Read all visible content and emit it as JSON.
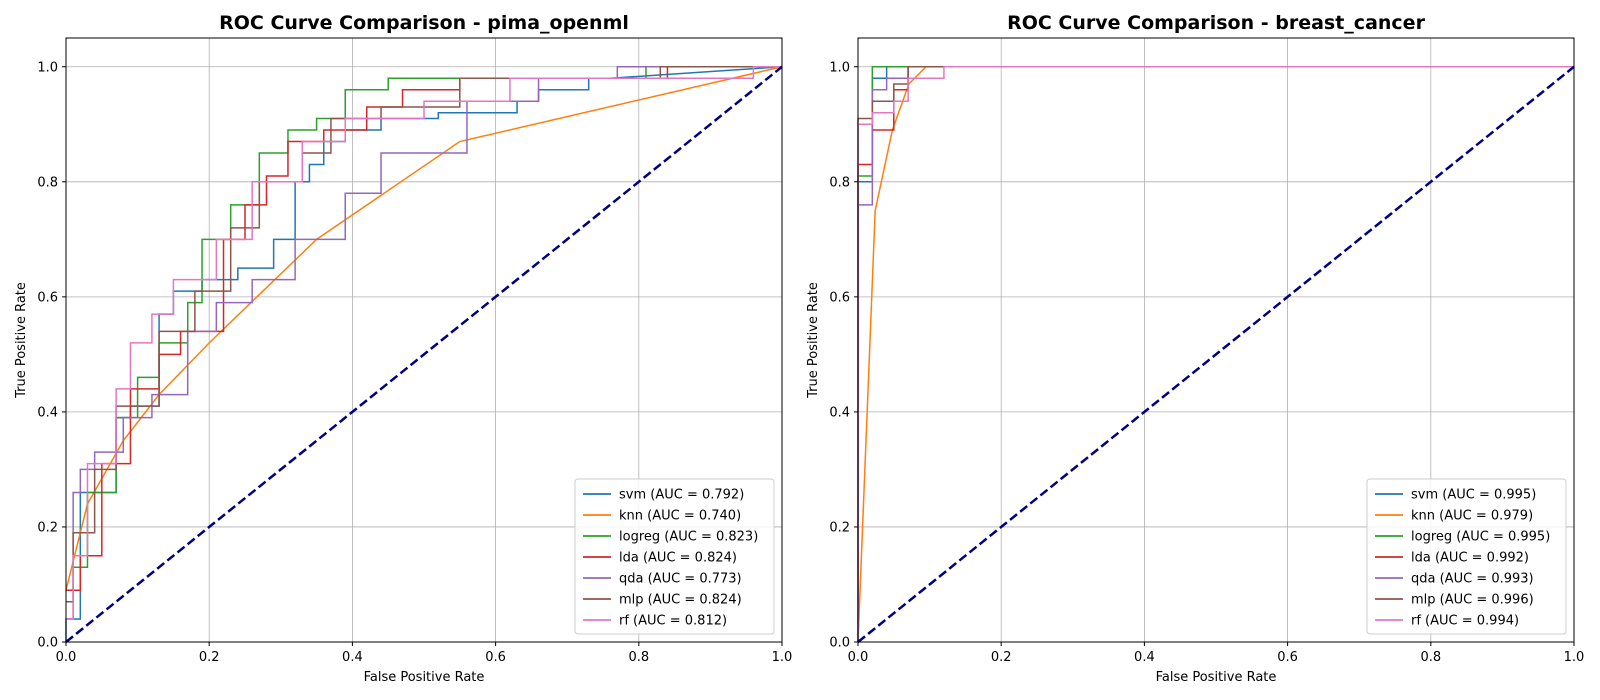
{
  "chart_data": [
    {
      "type": "line",
      "title": "ROC Curve Comparison - pima_openml",
      "xlabel": "False Positive Rate",
      "ylabel": "True Positive Rate",
      "xlim": [
        0,
        1
      ],
      "ylim": [
        0,
        1.05
      ],
      "xticks": [
        "0.0",
        "0.2",
        "0.4",
        "0.6",
        "0.8",
        "1.0"
      ],
      "yticks": [
        "0.0",
        "0.2",
        "0.4",
        "0.6",
        "0.8",
        "1.0"
      ],
      "grid": true,
      "legend_position": "lower-right",
      "reference_line": {
        "x": [
          0,
          1
        ],
        "y": [
          0,
          1
        ],
        "color": "#000080",
        "style": "dashed"
      },
      "series": [
        {
          "name": "svm (AUC = 0.792)",
          "color": "#1f77b4",
          "x": [
            0,
            0,
            0.02,
            0.02,
            0.07,
            0.07,
            0.09,
            0.09,
            0.13,
            0.13,
            0.15,
            0.15,
            0.19,
            0.19,
            0.24,
            0.24,
            0.29,
            0.29,
            0.32,
            0.32,
            0.34,
            0.34,
            0.36,
            0.36,
            0.39,
            0.39,
            0.44,
            0.44,
            0.52,
            0.52,
            0.63,
            0.63,
            0.66,
            0.66,
            0.73,
            0.73,
            0.76,
            0.76,
            1.0
          ],
          "y": [
            0,
            0.04,
            0.04,
            0.26,
            0.26,
            0.39,
            0.39,
            0.41,
            0.41,
            0.57,
            0.57,
            0.61,
            0.61,
            0.63,
            0.63,
            0.65,
            0.65,
            0.7,
            0.7,
            0.8,
            0.8,
            0.83,
            0.83,
            0.87,
            0.87,
            0.89,
            0.89,
            0.91,
            0.91,
            0.92,
            0.92,
            0.94,
            0.94,
            0.96,
            0.96,
            0.98,
            0.98,
            0.98,
            1.0
          ]
        },
        {
          "name": "knn (AUC = 0.740)",
          "color": "#ff7f0e",
          "x": [
            0,
            0.03,
            0.08,
            0.13,
            0.2,
            0.35,
            0.55,
            1.0
          ],
          "y": [
            0.09,
            0.24,
            0.35,
            0.43,
            0.52,
            0.7,
            0.87,
            1.0
          ]
        },
        {
          "name": "logreg (AUC = 0.823)",
          "color": "#2ca02c",
          "x": [
            0,
            0.01,
            0.01,
            0.03,
            0.03,
            0.07,
            0.07,
            0.1,
            0.1,
            0.13,
            0.13,
            0.17,
            0.17,
            0.19,
            0.19,
            0.23,
            0.23,
            0.27,
            0.27,
            0.31,
            0.31,
            0.35,
            0.35,
            0.39,
            0.39,
            0.45,
            0.45,
            0.51,
            0.51,
            0.81,
            0.81,
            1.0
          ],
          "y": [
            0.09,
            0.09,
            0.13,
            0.13,
            0.26,
            0.26,
            0.39,
            0.39,
            0.46,
            0.46,
            0.52,
            0.52,
            0.59,
            0.59,
            0.7,
            0.7,
            0.76,
            0.76,
            0.85,
            0.85,
            0.89,
            0.89,
            0.91,
            0.91,
            0.96,
            0.96,
            0.98,
            0.98,
            0.98,
            0.98,
            1.0,
            1.0
          ]
        },
        {
          "name": "lda (AUC = 0.824)",
          "color": "#d62728",
          "x": [
            0,
            0.02,
            0.02,
            0.05,
            0.05,
            0.09,
            0.09,
            0.13,
            0.13,
            0.16,
            0.16,
            0.22,
            0.22,
            0.25,
            0.25,
            0.28,
            0.28,
            0.31,
            0.31,
            0.36,
            0.36,
            0.42,
            0.42,
            0.47,
            0.47,
            0.55,
            0.55,
            0.84,
            0.84,
            1.0
          ],
          "y": [
            0.09,
            0.09,
            0.15,
            0.15,
            0.31,
            0.31,
            0.44,
            0.44,
            0.5,
            0.5,
            0.54,
            0.54,
            0.7,
            0.7,
            0.76,
            0.76,
            0.81,
            0.81,
            0.87,
            0.87,
            0.89,
            0.89,
            0.93,
            0.93,
            0.96,
            0.96,
            0.98,
            0.98,
            1.0,
            1.0
          ]
        },
        {
          "name": "qda (AUC = 0.773)",
          "color": "#9467bd",
          "x": [
            0,
            0.01,
            0.01,
            0.02,
            0.02,
            0.04,
            0.04,
            0.08,
            0.08,
            0.12,
            0.12,
            0.17,
            0.17,
            0.21,
            0.21,
            0.26,
            0.26,
            0.32,
            0.32,
            0.39,
            0.39,
            0.44,
            0.44,
            0.56,
            0.56,
            0.66,
            0.66,
            0.77,
            0.77,
            1.0
          ],
          "y": [
            0.04,
            0.04,
            0.26,
            0.26,
            0.3,
            0.3,
            0.33,
            0.33,
            0.39,
            0.39,
            0.43,
            0.43,
            0.54,
            0.54,
            0.59,
            0.59,
            0.63,
            0.63,
            0.7,
            0.7,
            0.78,
            0.78,
            0.85,
            0.85,
            0.94,
            0.94,
            0.98,
            0.98,
            1.0,
            1.0
          ]
        },
        {
          "name": "mlp (AUC = 0.824)",
          "color": "#8c564b",
          "x": [
            0,
            0.01,
            0.01,
            0.04,
            0.04,
            0.07,
            0.07,
            0.13,
            0.13,
            0.18,
            0.18,
            0.23,
            0.23,
            0.27,
            0.27,
            0.33,
            0.33,
            0.37,
            0.37,
            0.44,
            0.44,
            0.55,
            0.55,
            0.83,
            0.83,
            1.0
          ],
          "y": [
            0.07,
            0.07,
            0.19,
            0.19,
            0.3,
            0.3,
            0.41,
            0.41,
            0.54,
            0.54,
            0.61,
            0.61,
            0.72,
            0.72,
            0.8,
            0.8,
            0.85,
            0.85,
            0.91,
            0.91,
            0.93,
            0.93,
            0.98,
            0.98,
            1.0,
            1.0
          ]
        },
        {
          "name": "rf (AUC = 0.812)",
          "color": "#e377c2",
          "x": [
            0,
            0.01,
            0.01,
            0.03,
            0.03,
            0.07,
            0.07,
            0.09,
            0.09,
            0.12,
            0.12,
            0.15,
            0.15,
            0.21,
            0.21,
            0.26,
            0.26,
            0.33,
            0.33,
            0.39,
            0.39,
            0.5,
            0.5,
            0.62,
            0.62,
            0.96,
            0.96,
            1.0
          ],
          "y": [
            0.04,
            0.04,
            0.15,
            0.15,
            0.31,
            0.31,
            0.44,
            0.44,
            0.52,
            0.52,
            0.57,
            0.57,
            0.63,
            0.63,
            0.7,
            0.7,
            0.8,
            0.8,
            0.87,
            0.87,
            0.91,
            0.91,
            0.94,
            0.94,
            0.98,
            0.98,
            1.0,
            1.0
          ]
        }
      ]
    },
    {
      "type": "line",
      "title": "ROC Curve Comparison - breast_cancer",
      "xlabel": "False Positive Rate",
      "ylabel": "True Positive Rate",
      "xlim": [
        0,
        1
      ],
      "ylim": [
        0,
        1.05
      ],
      "xticks": [
        "0.0",
        "0.2",
        "0.4",
        "0.6",
        "0.8",
        "1.0"
      ],
      "yticks": [
        "0.0",
        "0.2",
        "0.4",
        "0.6",
        "0.8",
        "1.0"
      ],
      "grid": true,
      "legend_position": "lower-right",
      "reference_line": {
        "x": [
          0,
          1
        ],
        "y": [
          0,
          1
        ],
        "color": "#000080",
        "style": "dashed"
      },
      "series": [
        {
          "name": "svm (AUC = 0.995)",
          "color": "#1f77b4",
          "x": [
            0,
            0,
            0.02,
            0.02,
            0.04,
            0.04,
            1.0
          ],
          "y": [
            0,
            0.8,
            0.8,
            0.98,
            0.98,
            1.0,
            1.0
          ]
        },
        {
          "name": "knn (AUC = 0.979)",
          "color": "#ff7f0e",
          "x": [
            0,
            0.024,
            0.048,
            0.071,
            0.095,
            1.0
          ],
          "y": [
            0,
            0.75,
            0.89,
            0.97,
            1.0,
            1.0
          ]
        },
        {
          "name": "logreg (AUC = 0.995)",
          "color": "#2ca02c",
          "x": [
            0,
            0,
            0.02,
            0.02,
            1.0
          ],
          "y": [
            0,
            0.81,
            0.81,
            1.0,
            1.0
          ]
        },
        {
          "name": "lda (AUC = 0.992)",
          "color": "#d62728",
          "x": [
            0,
            0,
            0.02,
            0.02,
            0.05,
            0.05,
            0.07,
            0.07,
            1.0
          ],
          "y": [
            0,
            0.83,
            0.83,
            0.89,
            0.89,
            0.96,
            0.96,
            1.0,
            1.0
          ]
        },
        {
          "name": "qda (AUC = 0.993)",
          "color": "#9467bd",
          "x": [
            0,
            0,
            0.02,
            0.02,
            0.04,
            0.04,
            0.07,
            0.07,
            1.0
          ],
          "y": [
            0,
            0.76,
            0.76,
            0.96,
            0.96,
            0.98,
            0.98,
            1.0,
            1.0
          ]
        },
        {
          "name": "mlp (AUC = 0.996)",
          "color": "#8c564b",
          "x": [
            0,
            0,
            0.02,
            0.02,
            0.05,
            0.05,
            0.07,
            0.07,
            1.0
          ],
          "y": [
            0,
            0.91,
            0.91,
            0.94,
            0.94,
            0.97,
            0.97,
            1.0,
            1.0
          ]
        },
        {
          "name": "rf (AUC = 0.994)",
          "color": "#e377c2",
          "x": [
            0,
            0,
            0.02,
            0.02,
            0.05,
            0.05,
            0.07,
            0.07,
            0.12,
            0.12,
            1.0
          ],
          "y": [
            0,
            0.9,
            0.9,
            0.92,
            0.92,
            0.94,
            0.94,
            0.98,
            0.98,
            1.0,
            1.0
          ]
        }
      ]
    }
  ]
}
